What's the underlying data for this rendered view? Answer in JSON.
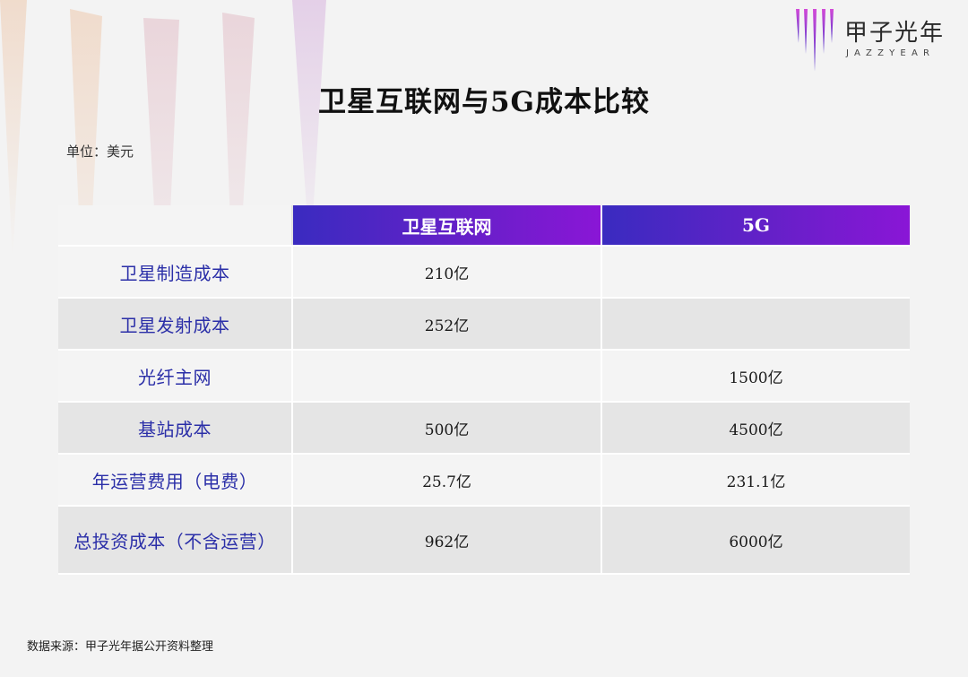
{
  "header": {
    "logo_cn": "甲子光年",
    "logo_en": "JAZZYEAR"
  },
  "title": "卫星互联网与5G成本比较",
  "unit": "单位：美元",
  "table": {
    "columns": [
      "",
      "卫星互联网",
      "5G"
    ],
    "rows": [
      {
        "label": "卫星制造成本",
        "satellite": "210亿",
        "fiveg": ""
      },
      {
        "label": "卫星发射成本",
        "satellite": "252亿",
        "fiveg": ""
      },
      {
        "label": "光纤主网",
        "satellite": "",
        "fiveg": "1500亿"
      },
      {
        "label": "基站成本",
        "satellite": "500亿",
        "fiveg": "4500亿"
      },
      {
        "label": "年运营费用（电费）",
        "satellite": "25.7亿",
        "fiveg": "231.1亿"
      },
      {
        "label": "总投资成本（不含运营）",
        "satellite": "962亿",
        "fiveg": "6000亿"
      }
    ]
  },
  "source": "数据来源：甲子光年据公开资料整理",
  "colors": {
    "header_gradient_start": "#3a2bc0",
    "header_gradient_end": "#8a16d6",
    "row_label": "#2b2fa8"
  }
}
